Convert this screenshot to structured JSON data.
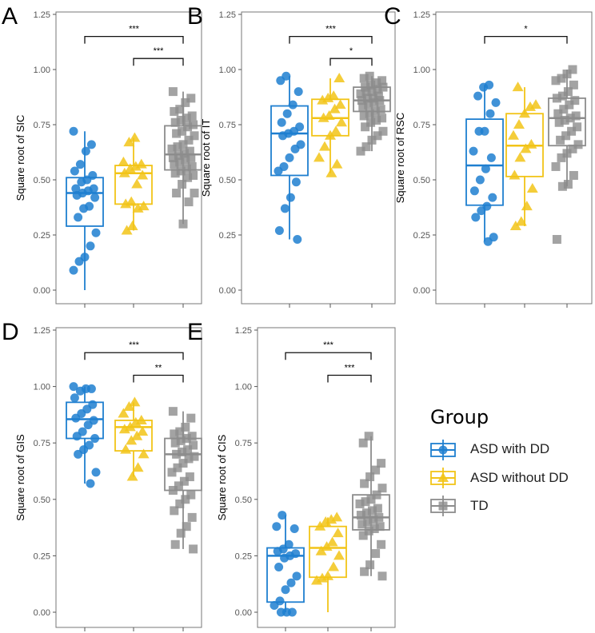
{
  "chart_data": [
    {
      "type": "box",
      "letter": "A",
      "ylabel": "Square root of SIC",
      "ylim": [
        0,
        1.25
      ],
      "yticks": [
        "0.00",
        "0.25",
        "0.50",
        "0.75",
        "1.00",
        "1.25"
      ],
      "groups": [
        {
          "min": 0.0,
          "q1": 0.29,
          "median": 0.44,
          "q3": 0.51,
          "max": 0.72,
          "points": [
            0.72,
            0.66,
            0.63,
            0.57,
            0.54,
            0.52,
            0.5,
            0.49,
            0.46,
            0.46,
            0.45,
            0.44,
            0.43,
            0.42,
            0.38,
            0.37,
            0.33,
            0.26,
            0.2,
            0.15,
            0.13,
            0.09
          ]
        },
        {
          "min": 0.27,
          "q1": 0.39,
          "median": 0.53,
          "q3": 0.565,
          "max": 0.69,
          "points": [
            0.69,
            0.67,
            0.58,
            0.57,
            0.56,
            0.55,
            0.53,
            0.52,
            0.48,
            0.4,
            0.39,
            0.38,
            0.37,
            0.29,
            0.27
          ]
        },
        {
          "min": 0.3,
          "q1": 0.545,
          "median": 0.615,
          "q3": 0.745,
          "max": 0.9,
          "points": [
            0.9,
            0.87,
            0.85,
            0.82,
            0.81,
            0.79,
            0.78,
            0.77,
            0.76,
            0.75,
            0.74,
            0.72,
            0.71,
            0.7,
            0.68,
            0.66,
            0.65,
            0.64,
            0.63,
            0.62,
            0.61,
            0.6,
            0.6,
            0.59,
            0.58,
            0.57,
            0.56,
            0.55,
            0.54,
            0.53,
            0.52,
            0.51,
            0.48,
            0.44,
            0.44,
            0.4,
            0.3
          ]
        }
      ],
      "brackets": [
        {
          "from": 1,
          "to": 3,
          "y": 1.15,
          "label": "***"
        },
        {
          "from": 2,
          "to": 3,
          "y": 1.05,
          "label": "***"
        }
      ]
    },
    {
      "type": "box",
      "letter": "B",
      "ylabel": "Square root of IT",
      "ylim": [
        0,
        1.25
      ],
      "yticks": [
        "0.00",
        "0.25",
        "0.50",
        "0.75",
        "1.00",
        "1.25"
      ],
      "groups": [
        {
          "min": 0.23,
          "q1": 0.52,
          "median": 0.71,
          "q3": 0.835,
          "max": 0.97,
          "points": [
            0.97,
            0.95,
            0.9,
            0.84,
            0.8,
            0.76,
            0.74,
            0.72,
            0.71,
            0.7,
            0.66,
            0.64,
            0.6,
            0.56,
            0.54,
            0.49,
            0.42,
            0.37,
            0.27,
            0.23
          ]
        },
        {
          "min": 0.53,
          "q1": 0.7,
          "median": 0.78,
          "q3": 0.865,
          "max": 0.96,
          "points": [
            0.96,
            0.88,
            0.87,
            0.86,
            0.84,
            0.82,
            0.79,
            0.78,
            0.76,
            0.72,
            0.7,
            0.65,
            0.6,
            0.57,
            0.53
          ]
        },
        {
          "min": 0.63,
          "q1": 0.81,
          "median": 0.86,
          "q3": 0.92,
          "max": 0.97,
          "points": [
            0.97,
            0.96,
            0.95,
            0.94,
            0.93,
            0.92,
            0.92,
            0.91,
            0.9,
            0.9,
            0.89,
            0.88,
            0.87,
            0.87,
            0.86,
            0.86,
            0.85,
            0.84,
            0.83,
            0.82,
            0.81,
            0.8,
            0.79,
            0.78,
            0.77,
            0.76,
            0.74,
            0.72,
            0.7,
            0.68,
            0.65,
            0.63
          ]
        }
      ],
      "brackets": [
        {
          "from": 1,
          "to": 3,
          "y": 1.15,
          "label": "***"
        },
        {
          "from": 2,
          "to": 3,
          "y": 1.05,
          "label": "*"
        }
      ]
    },
    {
      "type": "box",
      "letter": "C",
      "ylabel": "Square root of RSC",
      "ylim": [
        0,
        1.25
      ],
      "yticks": [
        "0.00",
        "0.25",
        "0.50",
        "0.75",
        "1.00",
        "1.25"
      ],
      "groups": [
        {
          "min": 0.22,
          "q1": 0.385,
          "median": 0.565,
          "q3": 0.775,
          "max": 0.93,
          "points": [
            0.93,
            0.92,
            0.88,
            0.85,
            0.8,
            0.72,
            0.72,
            0.63,
            0.6,
            0.55,
            0.5,
            0.45,
            0.42,
            0.38,
            0.36,
            0.33,
            0.24,
            0.22
          ]
        },
        {
          "min": 0.29,
          "q1": 0.515,
          "median": 0.655,
          "q3": 0.8,
          "max": 0.92,
          "points": [
            0.92,
            0.84,
            0.83,
            0.8,
            0.75,
            0.7,
            0.66,
            0.64,
            0.6,
            0.52,
            0.46,
            0.38,
            0.31,
            0.29
          ]
        },
        {
          "min": 0.47,
          "q1": 0.655,
          "median": 0.78,
          "q3": 0.87,
          "max": 1.0,
          "points": [
            1.0,
            0.98,
            0.96,
            0.95,
            0.93,
            0.9,
            0.88,
            0.87,
            0.86,
            0.84,
            0.82,
            0.8,
            0.79,
            0.78,
            0.77,
            0.76,
            0.74,
            0.72,
            0.7,
            0.68,
            0.66,
            0.64,
            0.62,
            0.6,
            0.56,
            0.52,
            0.48,
            0.47,
            0.23
          ]
        }
      ],
      "brackets": [
        {
          "from": 1,
          "to": 3,
          "y": 1.15,
          "label": "*"
        }
      ]
    },
    {
      "type": "box",
      "letter": "D",
      "ylabel": "Square root of GIS",
      "ylim": [
        0,
        1.25
      ],
      "yticks": [
        "0.00",
        "0.25",
        "0.50",
        "0.75",
        "1.00",
        "1.25"
      ],
      "groups": [
        {
          "min": 0.57,
          "q1": 0.77,
          "median": 0.855,
          "q3": 0.93,
          "max": 1.0,
          "points": [
            1.0,
            0.99,
            0.99,
            0.98,
            0.95,
            0.92,
            0.9,
            0.88,
            0.86,
            0.85,
            0.83,
            0.8,
            0.78,
            0.77,
            0.74,
            0.72,
            0.7,
            0.62,
            0.57
          ]
        },
        {
          "min": 0.6,
          "q1": 0.715,
          "median": 0.82,
          "q3": 0.85,
          "max": 0.93,
          "points": [
            0.93,
            0.91,
            0.88,
            0.85,
            0.84,
            0.82,
            0.81,
            0.8,
            0.78,
            0.76,
            0.72,
            0.7,
            0.64,
            0.6
          ]
        },
        {
          "min": 0.28,
          "q1": 0.54,
          "median": 0.7,
          "q3": 0.77,
          "max": 0.89,
          "points": [
            0.89,
            0.86,
            0.82,
            0.8,
            0.79,
            0.78,
            0.77,
            0.76,
            0.75,
            0.74,
            0.72,
            0.71,
            0.7,
            0.69,
            0.68,
            0.66,
            0.64,
            0.62,
            0.6,
            0.58,
            0.56,
            0.54,
            0.52,
            0.5,
            0.48,
            0.45,
            0.42,
            0.38,
            0.35,
            0.3,
            0.28
          ]
        }
      ],
      "brackets": [
        {
          "from": 1,
          "to": 3,
          "y": 1.15,
          "label": "***"
        },
        {
          "from": 2,
          "to": 3,
          "y": 1.05,
          "label": "**"
        }
      ]
    },
    {
      "type": "box",
      "letter": "E",
      "ylabel": "Square root of CIS",
      "ylim": [
        0,
        1.25
      ],
      "yticks": [
        "0.00",
        "0.25",
        "0.50",
        "0.75",
        "1.00",
        "1.25"
      ],
      "groups": [
        {
          "min": 0.0,
          "q1": 0.045,
          "median": 0.25,
          "q3": 0.285,
          "max": 0.43,
          "points": [
            0.43,
            0.38,
            0.37,
            0.3,
            0.28,
            0.27,
            0.26,
            0.25,
            0.24,
            0.2,
            0.16,
            0.13,
            0.1,
            0.05,
            0.03,
            0.0,
            0.0,
            0.0
          ]
        },
        {
          "min": 0.0,
          "q1": 0.155,
          "median": 0.285,
          "q3": 0.38,
          "max": 0.42,
          "points": [
            0.42,
            0.41,
            0.4,
            0.38,
            0.35,
            0.31,
            0.29,
            0.27,
            0.25,
            0.2,
            0.16,
            0.15,
            0.14
          ]
        },
        {
          "min": 0.16,
          "q1": 0.365,
          "median": 0.42,
          "q3": 0.52,
          "max": 0.78,
          "points": [
            0.78,
            0.75,
            0.66,
            0.63,
            0.6,
            0.57,
            0.55,
            0.52,
            0.5,
            0.49,
            0.48,
            0.46,
            0.45,
            0.44,
            0.43,
            0.42,
            0.41,
            0.4,
            0.39,
            0.38,
            0.37,
            0.36,
            0.34,
            0.3,
            0.26,
            0.21,
            0.18,
            0.16
          ]
        }
      ],
      "brackets": [
        {
          "from": 1,
          "to": 3,
          "y": 1.15,
          "label": "***"
        },
        {
          "from": 2,
          "to": 3,
          "y": 1.05,
          "label": "***"
        }
      ]
    }
  ],
  "legend": {
    "title": "Group",
    "items": [
      {
        "label": "ASD with DD",
        "color": "#1f7fd0",
        "shape": "circle"
      },
      {
        "label": "ASD without DD",
        "color": "#f2c418",
        "shape": "triangle"
      },
      {
        "label": "TD",
        "color": "#8c8c8c",
        "shape": "square"
      }
    ]
  }
}
